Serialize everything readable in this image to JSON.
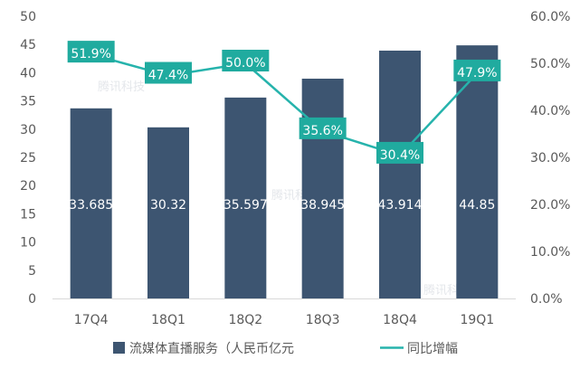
{
  "chart_data": {
    "type": "bar",
    "categories": [
      "17Q4",
      "18Q1",
      "18Q2",
      "18Q3",
      "18Q4",
      "19Q1"
    ],
    "series": [
      {
        "name": "流媒体直播服务（人民币亿元",
        "type": "bar",
        "axis": "left",
        "values": [
          33.685,
          30.32,
          35.597,
          38.945,
          43.914,
          44.85
        ],
        "labels": [
          "33.685",
          "30.32",
          "35.597",
          "38.945",
          "43.914",
          "44.85"
        ]
      },
      {
        "name": "同比增幅",
        "type": "line",
        "axis": "right",
        "values": [
          51.9,
          47.4,
          50.0,
          35.6,
          30.4,
          47.9
        ],
        "labels": [
          "51.9%",
          "47.4%",
          "50.0%",
          "35.6%",
          "30.4%",
          "47.9%"
        ]
      }
    ],
    "y_left": {
      "lim": [
        0,
        50
      ],
      "ticks": [
        0,
        5,
        10,
        15,
        20,
        25,
        30,
        35,
        40,
        45,
        50
      ],
      "tick_labels": [
        "0",
        "5",
        "10",
        "15",
        "20",
        "25",
        "30",
        "35",
        "40",
        "45",
        "50"
      ]
    },
    "y_right": {
      "lim": [
        0,
        60
      ],
      "ticks": [
        0,
        10,
        20,
        30,
        40,
        50,
        60
      ],
      "tick_labels": [
        "0.0%",
        "10.0%",
        "20.0%",
        "30.0%",
        "40.0%",
        "50.0%",
        "60.0%"
      ]
    },
    "grid": false,
    "legend": "bottom",
    "watermark": "腾讯科技",
    "colors": {
      "bar": "#3d5571",
      "line": "#26b3ac",
      "label_box": "#20ab9f",
      "label_text": "#ffffff",
      "bar_label_text": "#ffffff",
      "axis_text": "#595959",
      "axis_line": "#d9d9d9"
    }
  }
}
